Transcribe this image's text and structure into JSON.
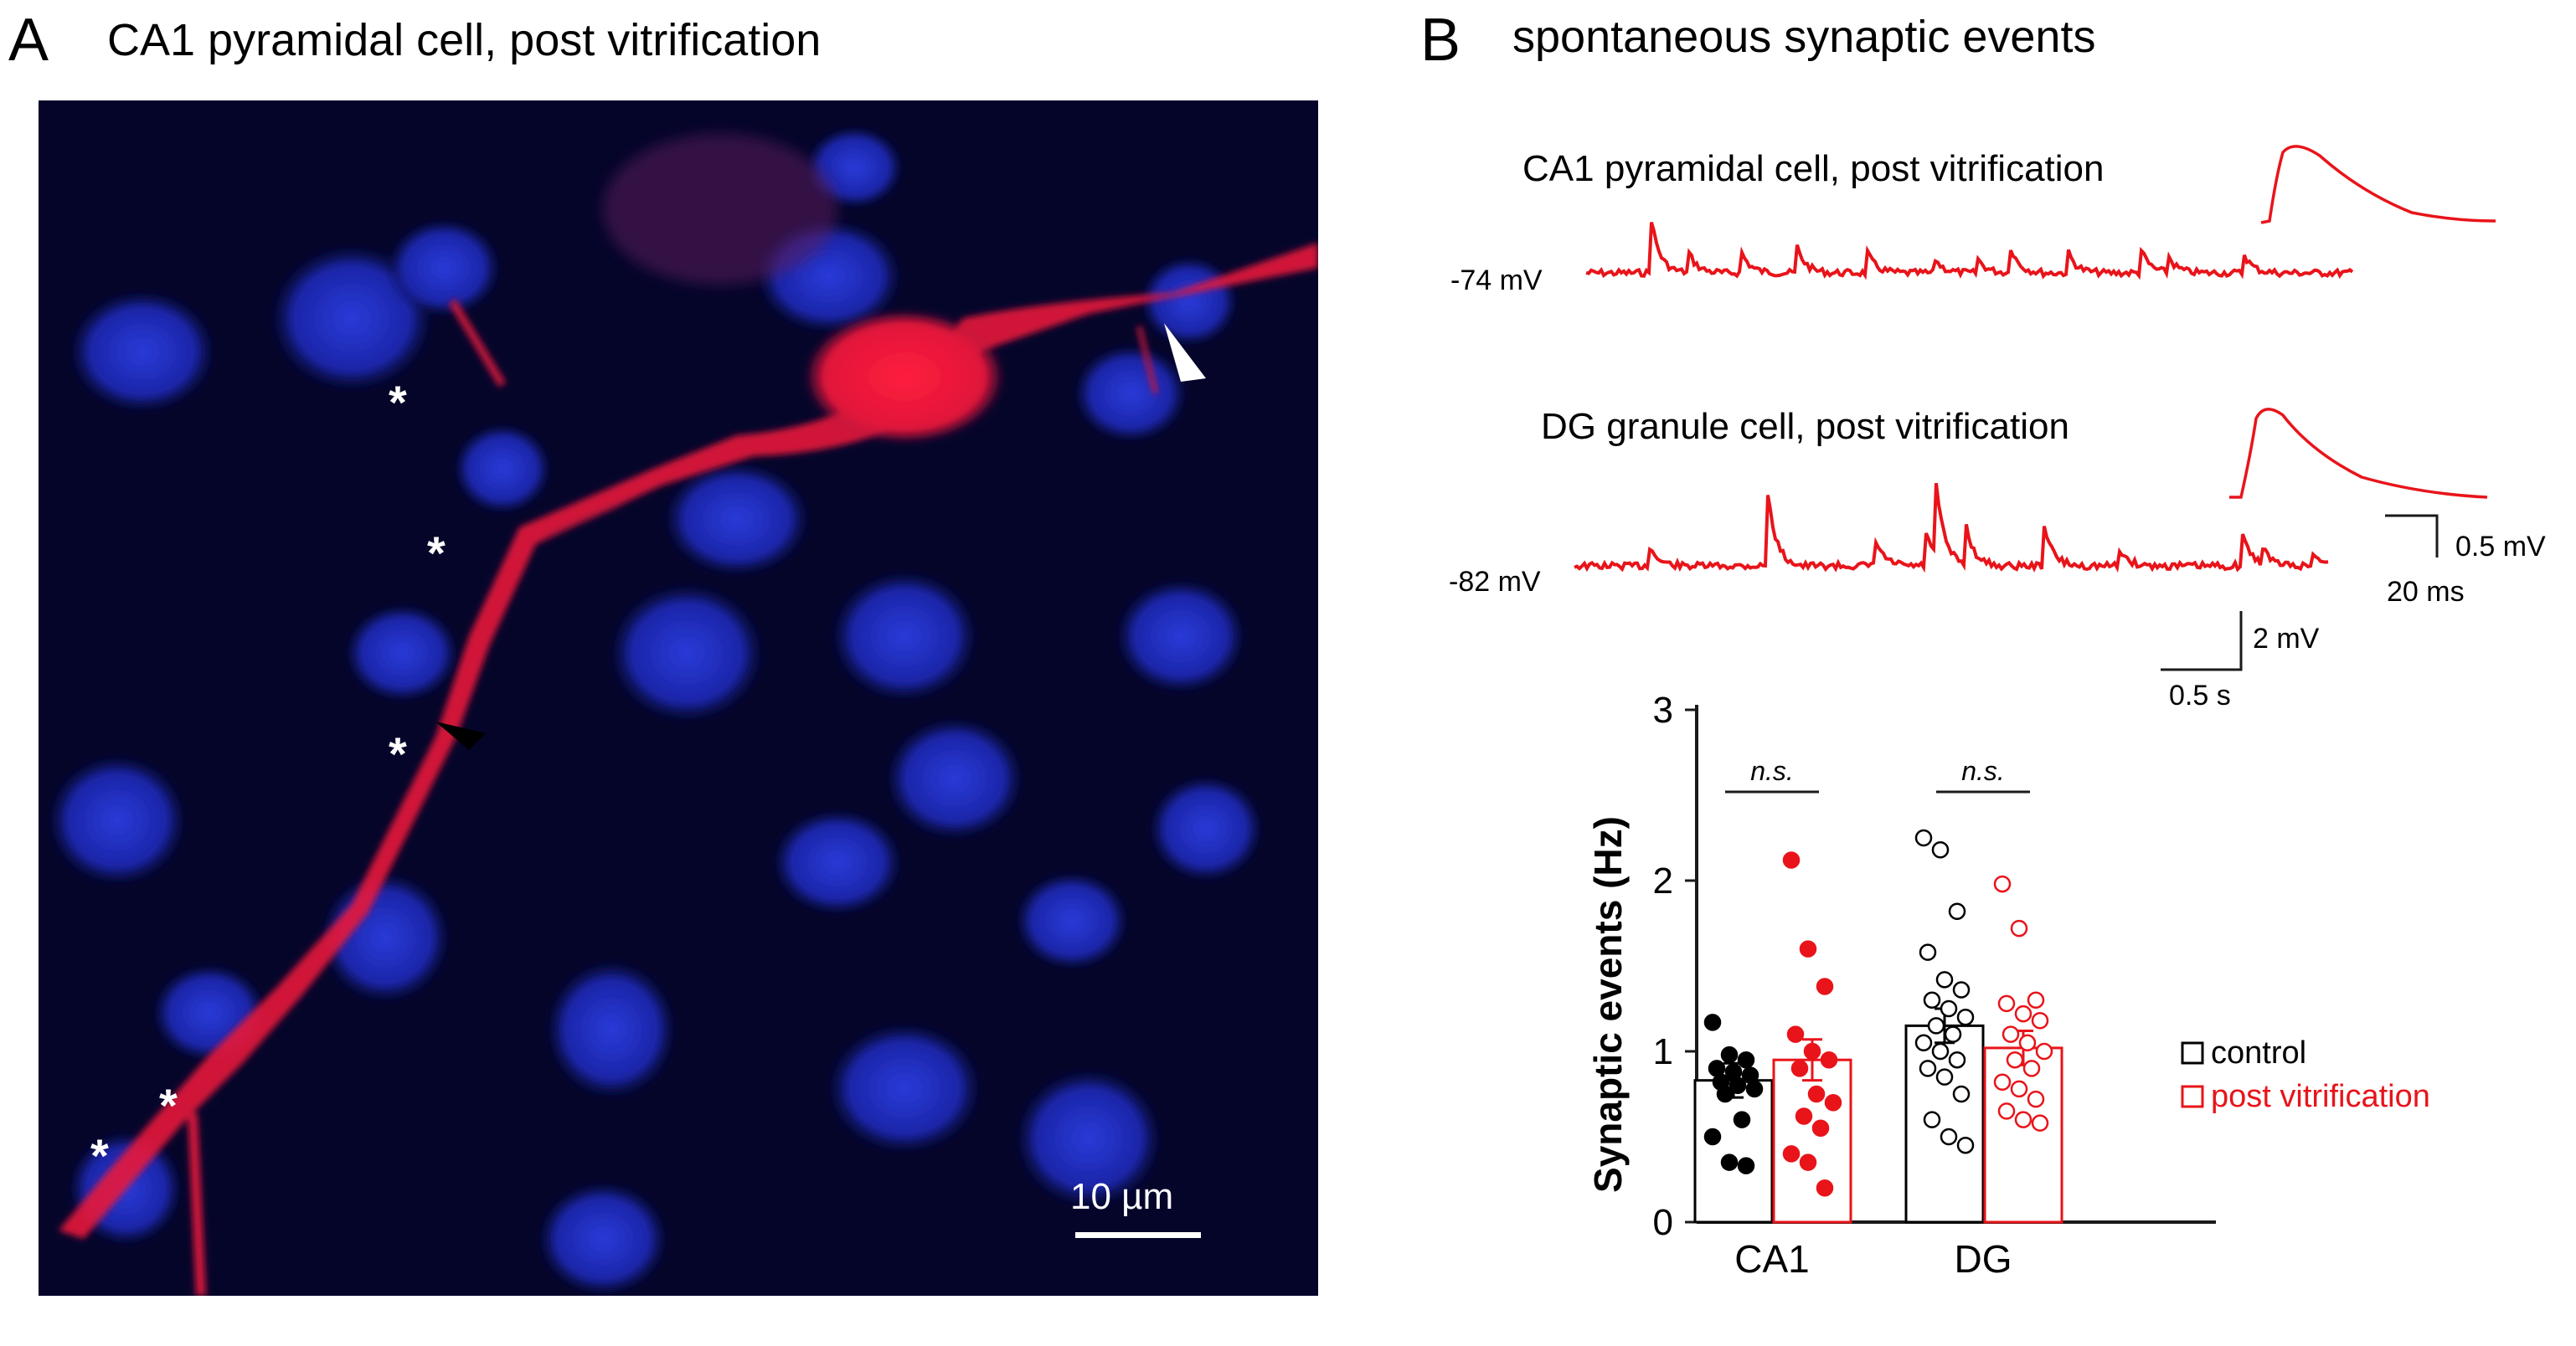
{
  "panel_a": {
    "letter": "A",
    "title": "CA1 pyramidal cell, post vitrification",
    "scale_bar_label": "10 µm",
    "marker_symbol": "*"
  },
  "panel_b": {
    "letter": "B",
    "title": "spontaneous synaptic events",
    "trace1": {
      "label": "CA1 pyramidal cell, post vitrification",
      "vm": "-74 mV"
    },
    "trace2": {
      "label": "DG granule cell, post vitrification",
      "vm": "-82 mV"
    },
    "inset_scale": {
      "v": "0.5 mV",
      "t": "20 ms"
    },
    "trace_scale": {
      "v": "2 mV",
      "t": "0.5 s"
    },
    "trace_color": "#e8141a"
  },
  "chart_data": {
    "type": "bar",
    "ylabel": "Synaptic events (Hz)",
    "ylim": [
      0,
      3
    ],
    "yticks": [
      "0",
      "1",
      "2",
      "3"
    ],
    "categories": [
      "CA1",
      "DG"
    ],
    "series": [
      {
        "name": "control",
        "color": "#000000",
        "filled": true,
        "values": [
          0.83,
          1.15
        ],
        "sem": [
          0.1,
          0.1
        ]
      },
      {
        "name": "post vitrification",
        "color": "#e8141a",
        "filled": false,
        "values": [
          0.95,
          1.02
        ],
        "sem": [
          0.12,
          0.1
        ]
      }
    ],
    "points": {
      "CA1_control": [
        1.17,
        0.98,
        0.95,
        0.9,
        0.88,
        0.86,
        0.82,
        0.8,
        0.78,
        0.75,
        0.6,
        0.5,
        0.35,
        0.33
      ],
      "CA1_post": [
        2.12,
        1.6,
        1.38,
        1.1,
        1.0,
        0.95,
        0.9,
        0.75,
        0.7,
        0.62,
        0.55,
        0.4,
        0.35,
        0.2
      ],
      "DG_control": [
        2.25,
        2.18,
        1.82,
        1.58,
        1.42,
        1.36,
        1.3,
        1.25,
        1.2,
        1.15,
        1.1,
        1.05,
        1.0,
        0.95,
        0.9,
        0.85,
        0.75,
        0.6,
        0.5,
        0.45
      ],
      "DG_post": [
        1.98,
        1.72,
        1.3,
        1.28,
        1.22,
        1.18,
        1.1,
        1.05,
        1.0,
        0.95,
        0.9,
        0.82,
        0.78,
        0.72,
        0.65,
        0.6,
        0.58
      ],
      "significance": [
        "n.s.",
        "n.s."
      ]
    },
    "legend": {
      "position": "right",
      "entries": [
        "control",
        "post vitrification"
      ]
    }
  }
}
